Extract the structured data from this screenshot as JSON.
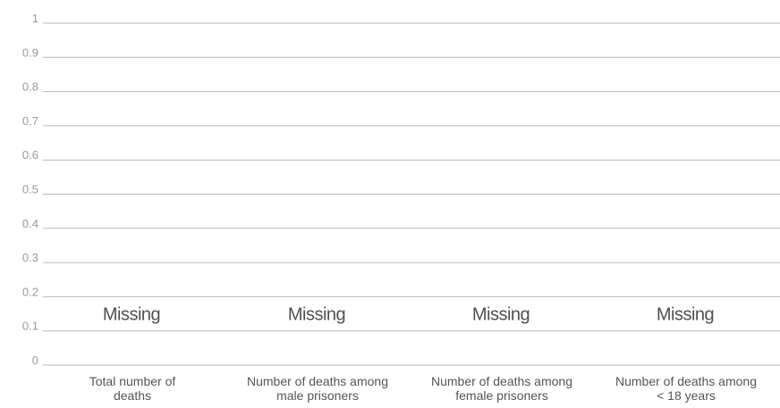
{
  "chart_data": {
    "type": "bar",
    "categories": [
      [
        "Total number of",
        "deaths"
      ],
      [
        "Number of deaths among",
        "male prisoners"
      ],
      [
        "Number of deaths among",
        "female prisoners"
      ],
      [
        "Number of deaths among",
        "< 18 years"
      ]
    ],
    "values": [
      null,
      null,
      null,
      null
    ],
    "value_labels": [
      "Missing",
      "Missing",
      "Missing",
      "Missing"
    ],
    "missing_label_level": 0.15,
    "ylim": [
      0,
      1
    ],
    "yticks": [
      0,
      0.1,
      0.2,
      0.3,
      0.4,
      0.5,
      0.6,
      0.7,
      0.8,
      0.9,
      1
    ],
    "ytick_labels": [
      "0",
      "0.1",
      "0.2",
      "0.3",
      "0.4",
      "0.5",
      "0.6",
      "0.7",
      "0.8",
      "0.9",
      "1"
    ],
    "grid": true,
    "title": "",
    "xlabel": "",
    "ylabel": "",
    "colors": {
      "grid": "#b7b7b7",
      "tick_text": "#9a9a9a",
      "label_text": "#555555",
      "missing_text": "#505050"
    }
  }
}
